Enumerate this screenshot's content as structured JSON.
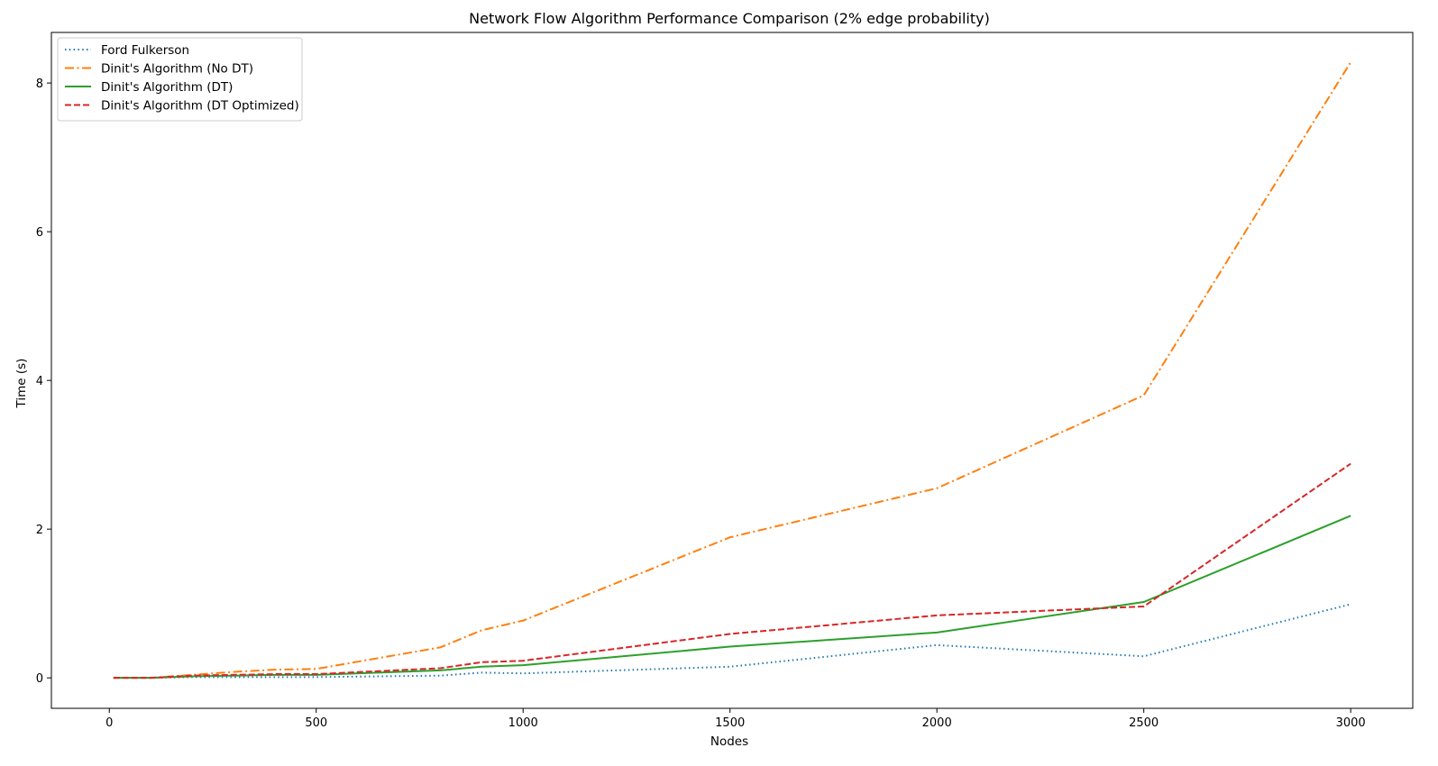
{
  "chart_data": {
    "type": "line",
    "title": "Network Flow Algorithm Performance Comparison (2% edge probability)",
    "xlabel": "Nodes",
    "ylabel": "Time (s)",
    "xlim": [
      -140,
      3150
    ],
    "ylim": [
      -0.41,
      8.68
    ],
    "xticks": [
      0,
      500,
      1000,
      1500,
      2000,
      2500,
      3000
    ],
    "yticks": [
      0,
      2,
      4,
      6,
      8
    ],
    "grid": false,
    "legend_position": "upper-left",
    "x": [
      10,
      100,
      200,
      300,
      400,
      500,
      800,
      900,
      1000,
      1500,
      2000,
      2500,
      3000
    ],
    "series": [
      {
        "name": "Ford Fulkerson",
        "color": "#1f77b4",
        "linestyle": "dotted",
        "values": [
          0.0,
          0.0,
          0.01,
          0.01,
          0.01,
          0.01,
          0.03,
          0.07,
          0.06,
          0.15,
          0.44,
          0.29,
          0.99
        ]
      },
      {
        "name": "Dinit's Algorithm (No DT)",
        "color": "#ff7f0e",
        "linestyle": "dashdot",
        "values": [
          0.0,
          0.0,
          0.04,
          0.08,
          0.11,
          0.12,
          0.41,
          0.64,
          0.77,
          1.89,
          2.55,
          3.8,
          8.28
        ]
      },
      {
        "name": "Dinit's Algorithm (DT)",
        "color": "#2ca02c",
        "linestyle": "solid",
        "values": [
          0.0,
          0.0,
          0.02,
          0.03,
          0.04,
          0.04,
          0.1,
          0.15,
          0.17,
          0.42,
          0.61,
          1.02,
          2.18
        ]
      },
      {
        "name": "Dinit's Algorithm (DT Optimized)",
        "color": "#d62728",
        "linestyle": "dashed",
        "values": [
          0.0,
          0.0,
          0.03,
          0.04,
          0.05,
          0.05,
          0.13,
          0.21,
          0.23,
          0.59,
          0.84,
          0.96,
          2.88
        ]
      }
    ]
  }
}
